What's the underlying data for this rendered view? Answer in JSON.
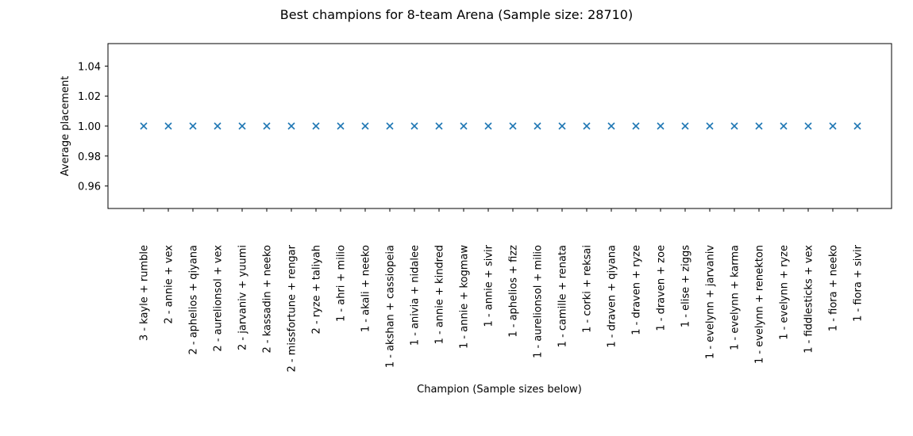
{
  "chart_data": {
    "type": "scatter",
    "title": "Best champions for 8-team Arena (Sample size: 28710)",
    "xlabel": "Champion (Sample sizes below)",
    "ylabel": "Average placement",
    "ylim": [
      0.945,
      1.055
    ],
    "yticks": [
      "0.96",
      "0.98",
      "1.00",
      "1.02",
      "1.04"
    ],
    "grid": false,
    "marker": "x",
    "color": "#1f77b4",
    "categories": [
      "3 - kayle + rumble",
      "2 - annie + vex",
      "2 - aphelios + qiyana",
      "2 - aurelionsol + vex",
      "2 - jarvaniv + yuumi",
      "2 - kassadin + neeko",
      "2 - missfortune + rengar",
      "2 - ryze + taliyah",
      "1 - ahri + milio",
      "1 - akali + neeko",
      "1 - akshan + cassiopeia",
      "1 - anivia + nidalee",
      "1 - annie + kindred",
      "1 - annie + kogmaw",
      "1 - annie + sivir",
      "1 - aphelios + fizz",
      "1 - aurelionsol + milio",
      "1 - camille + renata",
      "1 - corki + reksai",
      "1 - draven + qiyana",
      "1 - draven + ryze",
      "1 - draven + zoe",
      "1 - elise + ziggs",
      "1 - evelynn + jarvaniv",
      "1 - evelynn + karma",
      "1 - evelynn + renekton",
      "1 - evelynn + ryze",
      "1 - fiddlesticks + vex",
      "1 - fiora + neeko",
      "1 - fiora + sivir"
    ],
    "values": [
      1.0,
      1.0,
      1.0,
      1.0,
      1.0,
      1.0,
      1.0,
      1.0,
      1.0,
      1.0,
      1.0,
      1.0,
      1.0,
      1.0,
      1.0,
      1.0,
      1.0,
      1.0,
      1.0,
      1.0,
      1.0,
      1.0,
      1.0,
      1.0,
      1.0,
      1.0,
      1.0,
      1.0,
      1.0,
      1.0
    ]
  }
}
